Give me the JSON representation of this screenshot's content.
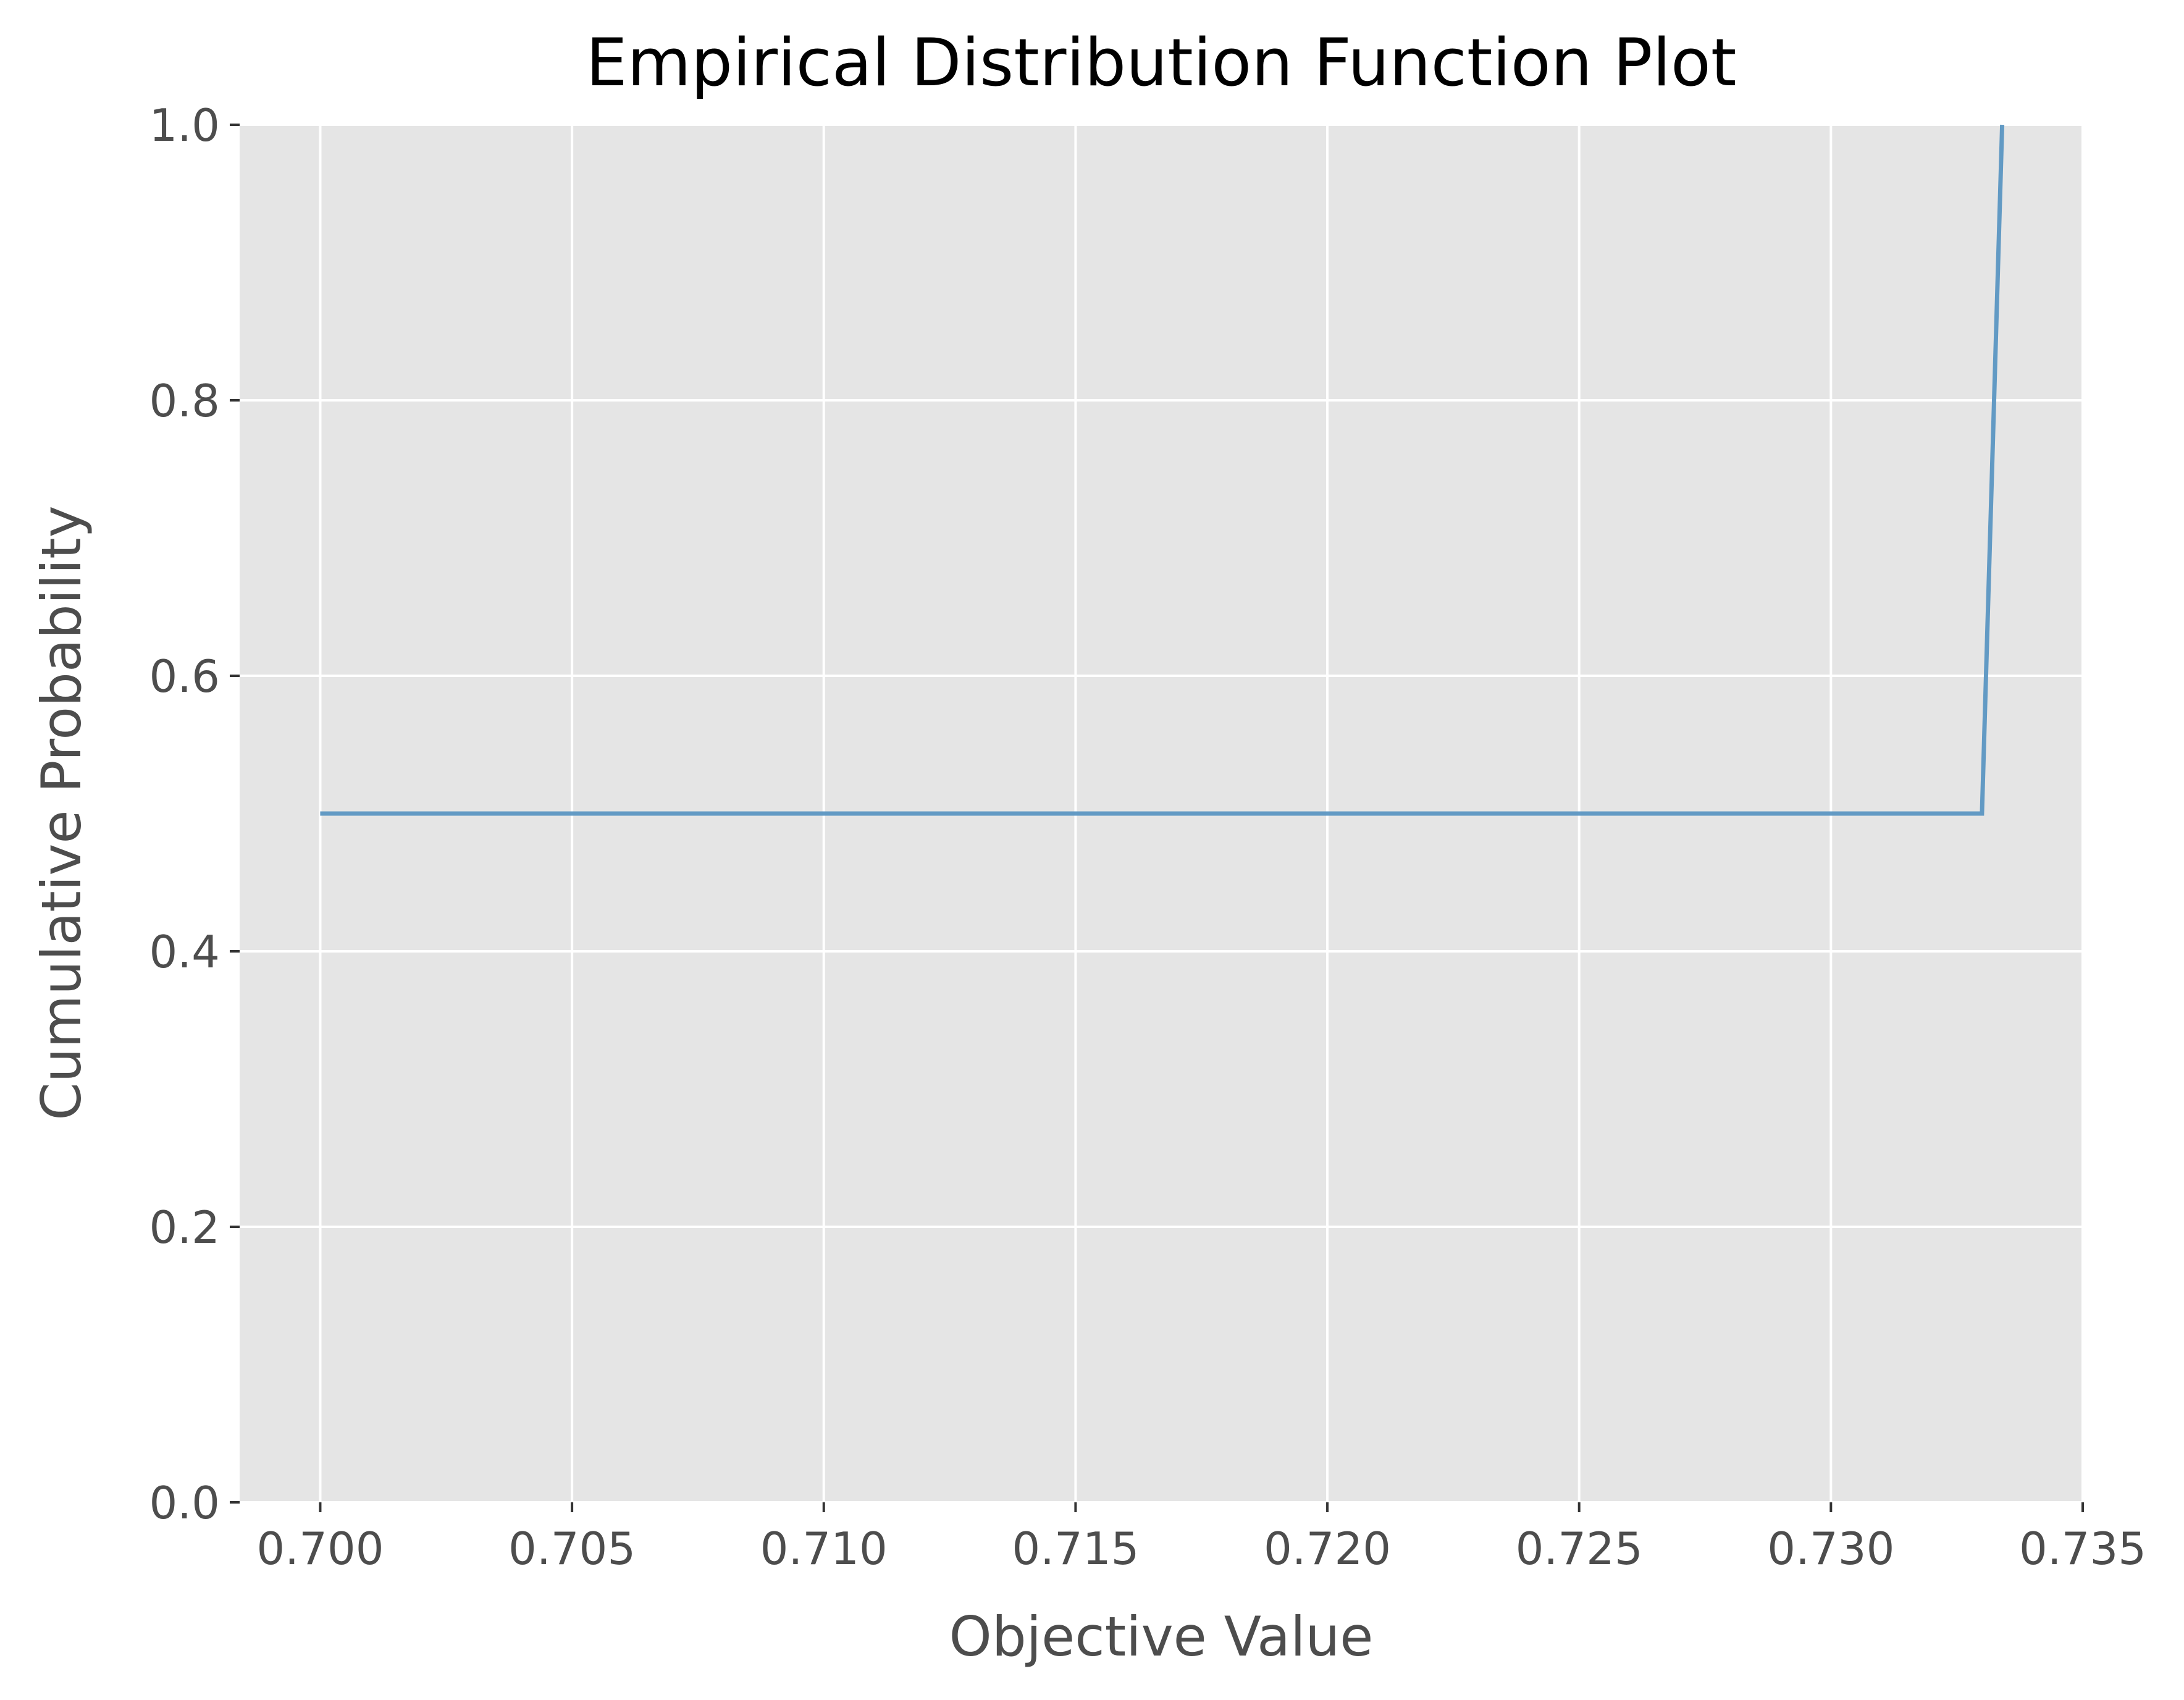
{
  "chart_data": {
    "type": "line",
    "title": "Empirical Distribution Function Plot",
    "xlabel": "Objective Value",
    "ylabel": "Cumulative Probability",
    "xlim": [
      0.6984,
      0.735
    ],
    "ylim": [
      0.0,
      1.0
    ],
    "x_ticks": [
      0.7,
      0.705,
      0.71,
      0.715,
      0.72,
      0.725,
      0.73,
      0.735
    ],
    "x_tick_labels": [
      "0.700",
      "0.705",
      "0.710",
      "0.715",
      "0.720",
      "0.725",
      "0.730",
      "0.735"
    ],
    "y_ticks": [
      0.0,
      0.2,
      0.4,
      0.6,
      0.8,
      1.0
    ],
    "y_tick_labels": [
      "0.0",
      "0.2",
      "0.4",
      "0.6",
      "0.8",
      "1.0"
    ],
    "grid": true,
    "series": [
      {
        "color": "#5b96c2",
        "x": [
          0.7,
          0.733,
          0.7334
        ],
        "y": [
          0.5,
          0.5,
          1.0
        ]
      }
    ]
  },
  "colors": {
    "plot_background": "#e5e5e5",
    "grid": "#ffffff",
    "tick_text": "#4d4d4d",
    "title_text": "#000000",
    "line": "#5b96c2"
  }
}
